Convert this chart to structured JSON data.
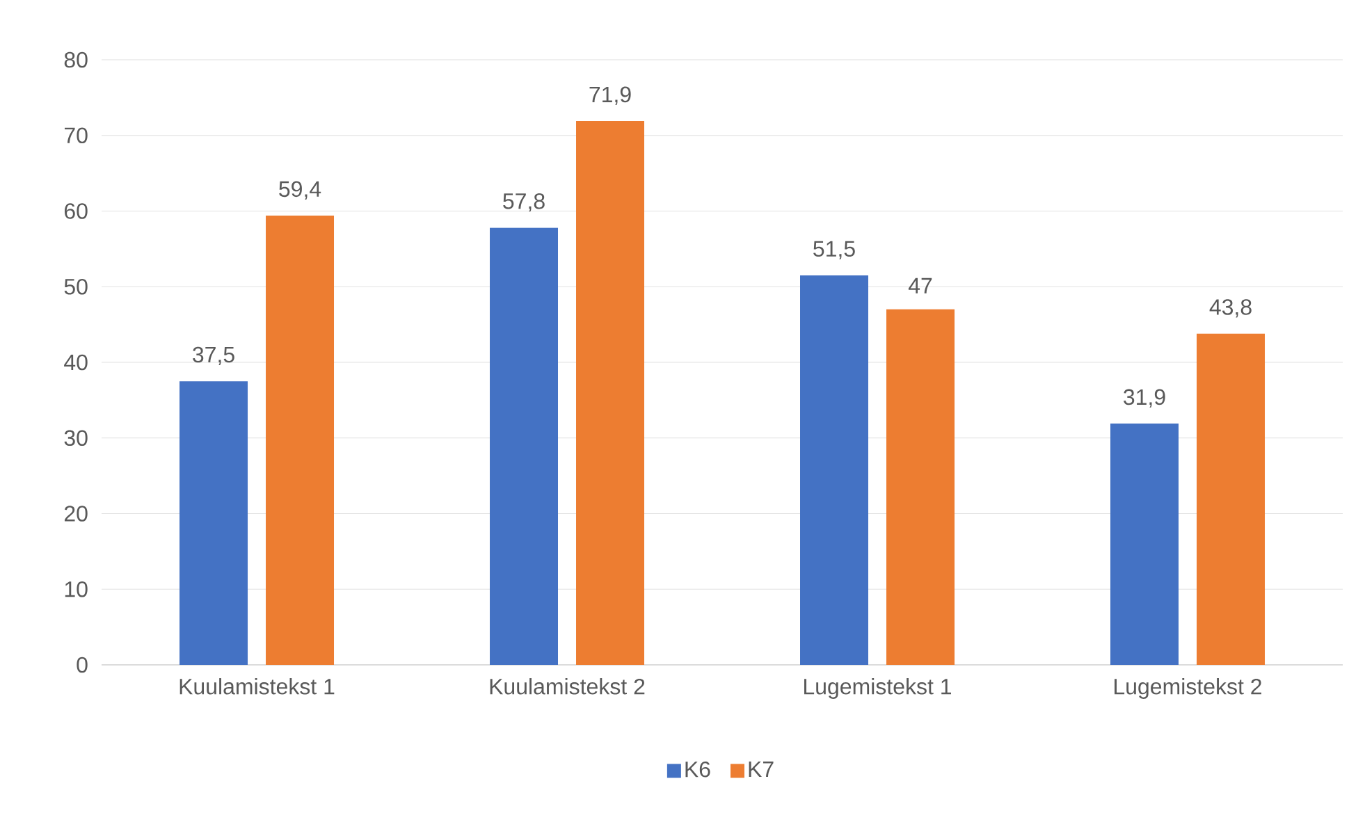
{
  "chart_data": {
    "type": "bar",
    "categories": [
      "Kuulamistekst 1",
      "Kuulamistekst 2",
      "Lugemistekst 1",
      "Lugemistekst 2"
    ],
    "series": [
      {
        "name": "K6",
        "color": "#4472c4",
        "values": [
          37.5,
          57.8,
          51.5,
          31.9
        ],
        "value_labels": [
          "37,5",
          "57,8",
          "51,5",
          "31,9"
        ]
      },
      {
        "name": "K7",
        "color": "#ed7d31",
        "values": [
          59.4,
          71.9,
          47,
          43.8
        ],
        "value_labels": [
          "59,4",
          "71,9",
          "47",
          "43,8"
        ]
      }
    ],
    "ylim": [
      0,
      80
    ],
    "yticks": [
      0,
      10,
      20,
      30,
      40,
      50,
      60,
      70,
      80
    ],
    "grid": "y",
    "legend": "bottom"
  }
}
